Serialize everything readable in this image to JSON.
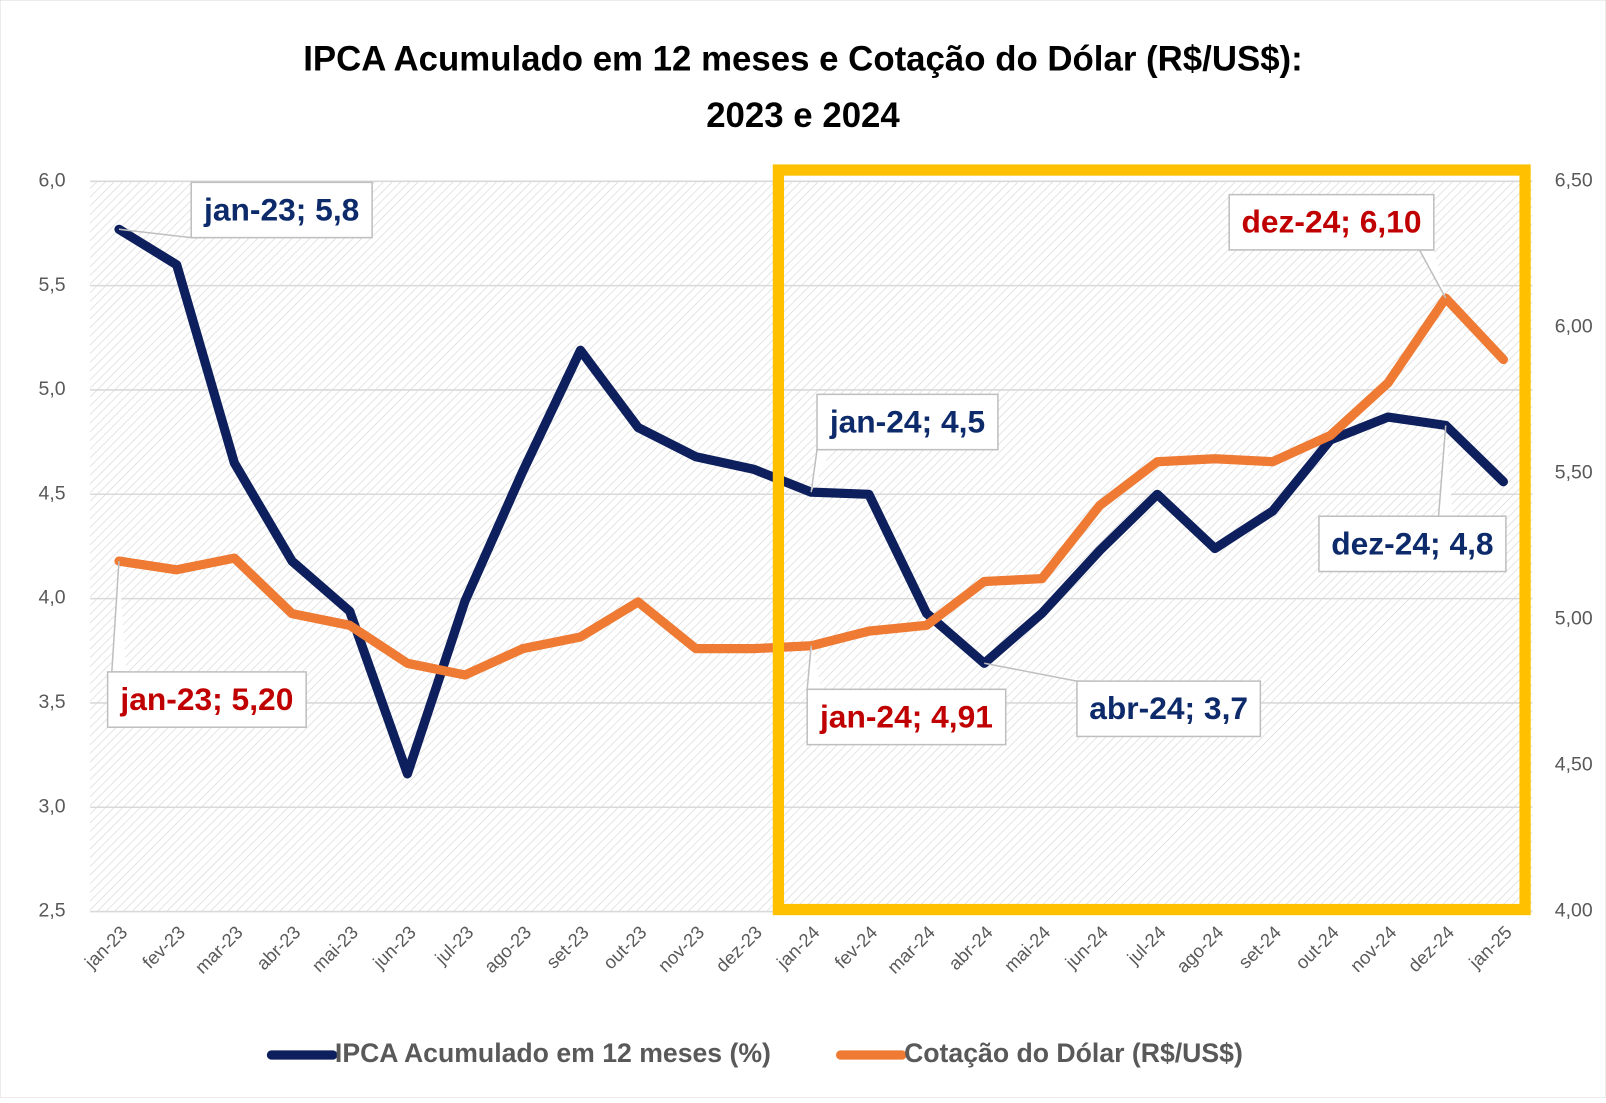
{
  "chart_data": {
    "type": "line",
    "title_lines": [
      "IPCA Acumulado em 12 meses e Cotação do Dólar (R$/US$):",
      "2023 e 2024"
    ],
    "categories": [
      "jan-23",
      "fev-23",
      "mar-23",
      "abr-23",
      "mai-23",
      "jun-23",
      "jul-23",
      "ago-23",
      "set-23",
      "out-23",
      "nov-23",
      "dez-23",
      "jan-24",
      "fev-24",
      "mar-24",
      "abr-24",
      "mai-24",
      "jun-24",
      "jul-24",
      "ago-24",
      "set-24",
      "out-24",
      "nov-24",
      "dez-24",
      "jan-25"
    ],
    "series": [
      {
        "name": "IPCA Acumulado em 12 meses (%)",
        "color": "#0d1f5c",
        "label_color": "#0d2a6b",
        "axis": "y",
        "values": [
          5.77,
          5.6,
          4.65,
          4.18,
          3.94,
          3.16,
          3.99,
          4.61,
          5.19,
          4.82,
          4.68,
          4.62,
          4.51,
          4.5,
          3.93,
          3.69,
          3.93,
          4.23,
          4.5,
          4.24,
          4.42,
          4.76,
          4.87,
          4.83,
          4.56
        ],
        "value_labels": [
          "jan-23; 5,8",
          null,
          null,
          null,
          null,
          null,
          null,
          null,
          null,
          null,
          null,
          null,
          "jan-24; 4,5",
          null,
          null,
          "abr-24; 3,7",
          null,
          null,
          null,
          null,
          null,
          null,
          null,
          "dez-24; 4,8",
          null
        ]
      },
      {
        "name": "Cotação do Dólar (R$/US$)",
        "color": "#ee7a33",
        "label_color": "#c00000",
        "axis": "y2",
        "values": [
          5.2,
          5.17,
          5.21,
          5.02,
          4.98,
          4.85,
          4.81,
          4.9,
          4.94,
          5.06,
          4.9,
          4.9,
          4.91,
          4.96,
          4.98,
          5.13,
          5.14,
          5.39,
          5.54,
          5.55,
          5.54,
          5.63,
          5.81,
          6.1,
          5.89
        ],
        "value_labels": [
          "jan-23; 5,20",
          null,
          null,
          null,
          null,
          null,
          null,
          null,
          null,
          null,
          null,
          null,
          "jan-24; 4,91",
          null,
          null,
          null,
          null,
          null,
          null,
          null,
          null,
          null,
          null,
          "dez-24; 6,10",
          null
        ]
      }
    ],
    "ylim": [
      2.5,
      6.0
    ],
    "yticks": [
      {
        "value": 2.5,
        "label": "2,5"
      },
      {
        "value": 3.0,
        "label": "3,0"
      },
      {
        "value": 3.5,
        "label": "3,5"
      },
      {
        "value": 4.0,
        "label": "4,0"
      },
      {
        "value": 4.5,
        "label": "4,5"
      },
      {
        "value": 5.0,
        "label": "5,0"
      },
      {
        "value": 5.5,
        "label": "5,5"
      },
      {
        "value": 6.0,
        "label": "6,0"
      }
    ],
    "y2lim": [
      4.0,
      6.5
    ],
    "y2ticks": [
      {
        "value": 4.0,
        "label": "4,00"
      },
      {
        "value": 4.5,
        "label": "4,50"
      },
      {
        "value": 5.0,
        "label": "5,00"
      },
      {
        "value": 5.5,
        "label": "5,50"
      },
      {
        "value": 6.0,
        "label": "6,00"
      },
      {
        "value": 6.5,
        "label": "6,50"
      }
    ],
    "grid": true,
    "legend": "bottom"
  }
}
